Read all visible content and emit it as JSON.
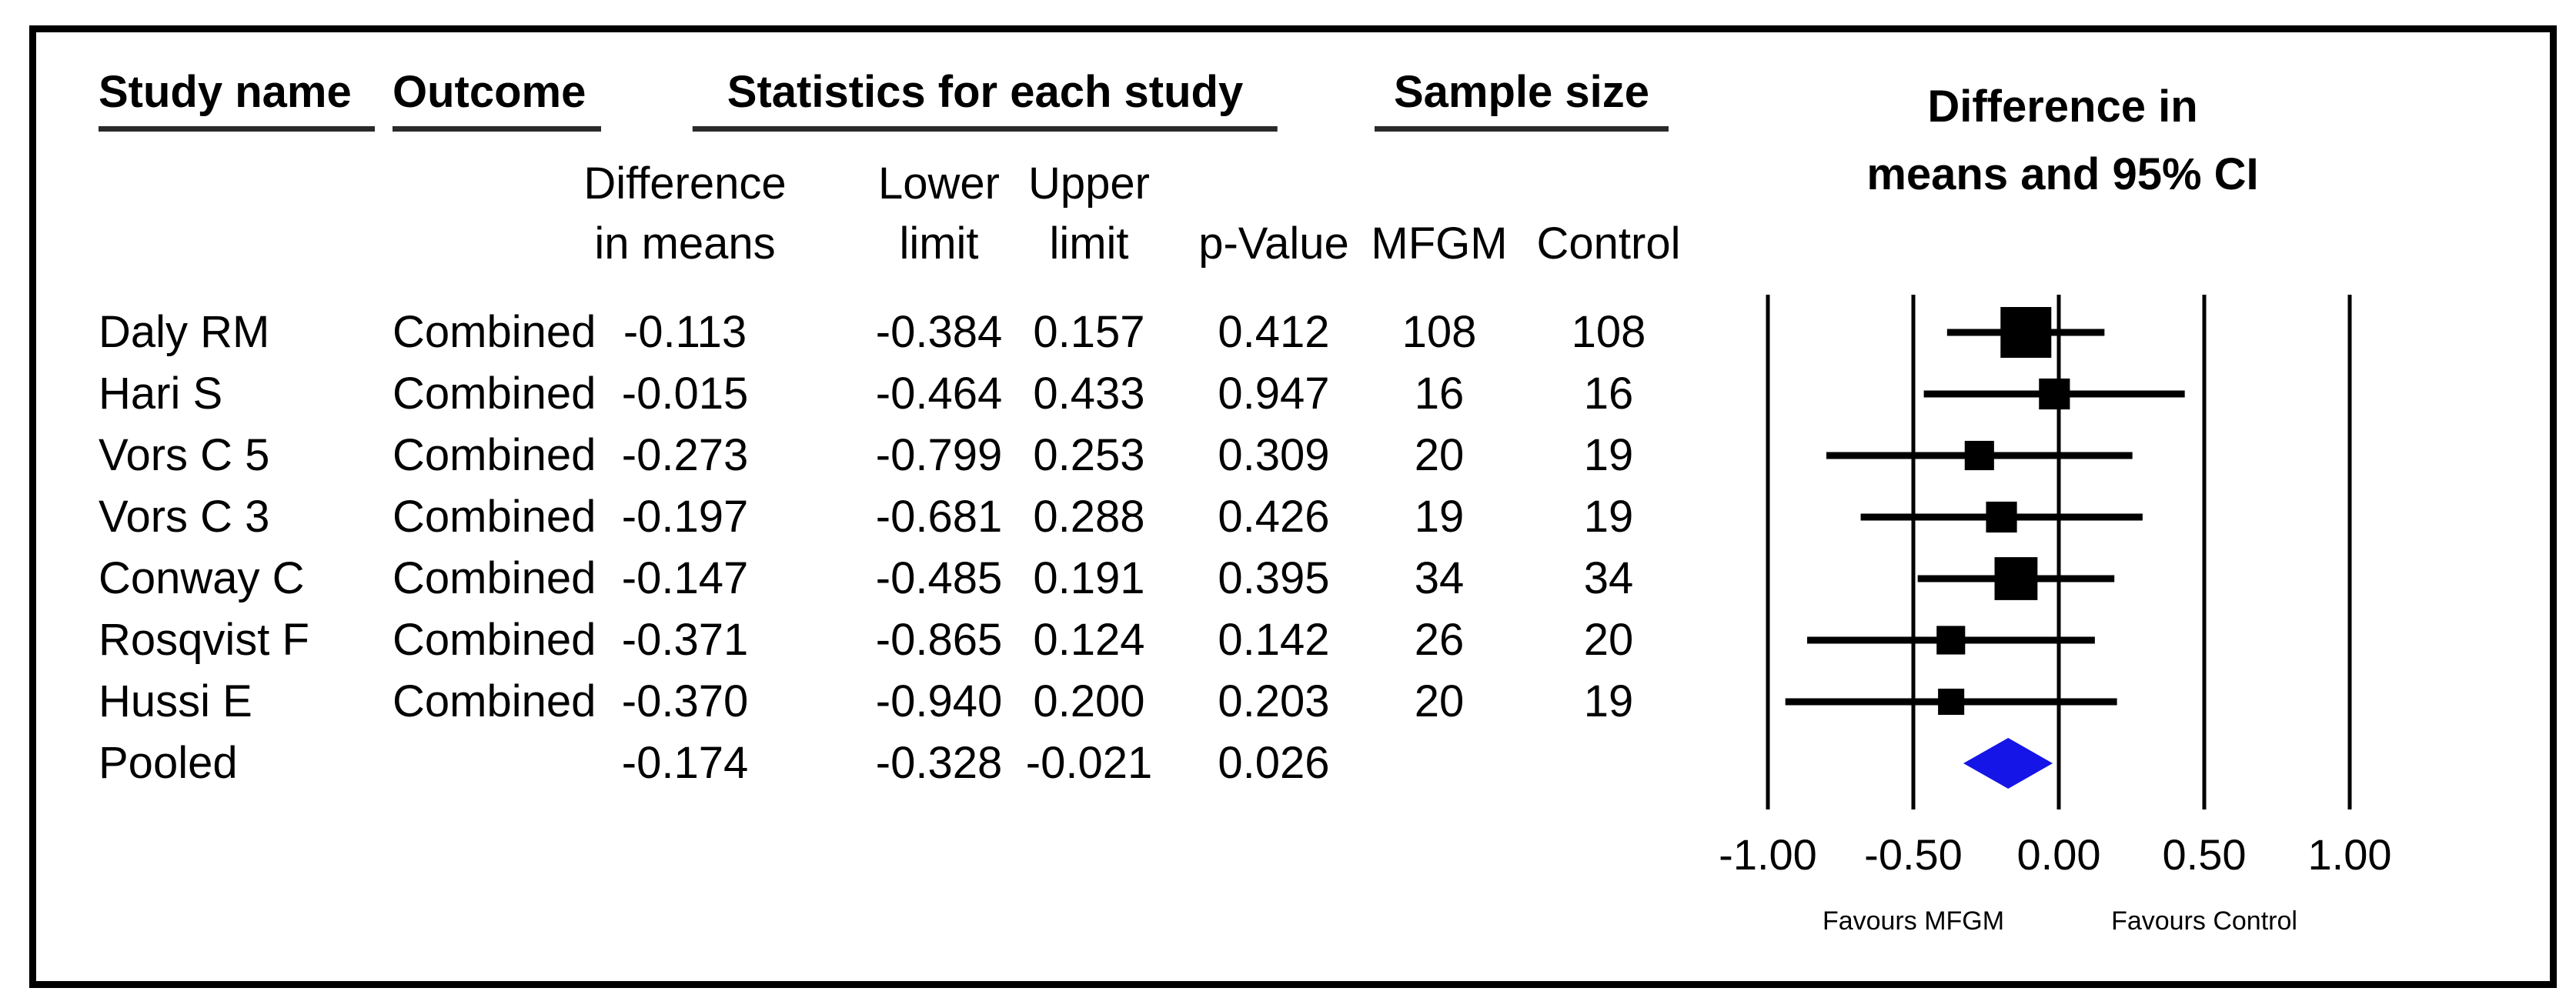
{
  "table": {
    "headers": {
      "study": "Study name",
      "outcome": "Outcome",
      "stats_group": "Statistics for each study",
      "sample_group": "Sample size"
    },
    "subheaders": {
      "diff1": "Difference",
      "diff2": "in means",
      "lower1": "Lower",
      "lower2": "limit",
      "upper1": "Upper",
      "upper2": "limit",
      "p": "p-Value",
      "mfgm": "MFGM",
      "control": "Control"
    }
  },
  "plot": {
    "title_line1": "Difference in",
    "title_line2": "means and 95% CI",
    "diamond_color": "#1515e8",
    "line_color": "#000000"
  },
  "chart_data": {
    "type": "forest",
    "title": "Difference in means and 95% CI",
    "effect_measure": "Difference in means",
    "ci_level": "95%",
    "xlim": [
      -1.0,
      1.0
    ],
    "grid": "vertical-gridlines-at-ticks",
    "x_ticks": [
      {
        "value": -1.0,
        "label": "-1.00"
      },
      {
        "value": -0.5,
        "label": "-0.50"
      },
      {
        "value": 0.0,
        "label": "0.00"
      },
      {
        "value": 0.5,
        "label": "0.50"
      },
      {
        "value": 1.0,
        "label": "1.00"
      }
    ],
    "annotations": {
      "left": "Favours MFGM",
      "right": "Favours Control"
    },
    "studies": [
      {
        "name": "Daly RM",
        "outcome": "Combined",
        "diff": -0.113,
        "lower": -0.384,
        "upper": 0.157,
        "p_value": 0.412,
        "n_mfgm": 108,
        "n_control": 108,
        "rel_weight": 1.0
      },
      {
        "name": "Hari S",
        "outcome": "Combined",
        "diff": -0.015,
        "lower": -0.464,
        "upper": 0.433,
        "p_value": 0.947,
        "n_mfgm": 16,
        "n_control": 16,
        "rel_weight": 0.24
      },
      {
        "name": "Vors C 5",
        "outcome": "Combined",
        "diff": -0.273,
        "lower": -0.799,
        "upper": 0.253,
        "p_value": 0.309,
        "n_mfgm": 20,
        "n_control": 19,
        "rel_weight": 0.18
      },
      {
        "name": "Vors C 3",
        "outcome": "Combined",
        "diff": -0.197,
        "lower": -0.681,
        "upper": 0.288,
        "p_value": 0.426,
        "n_mfgm": 19,
        "n_control": 19,
        "rel_weight": 0.24
      },
      {
        "name": "Conway C",
        "outcome": "Combined",
        "diff": -0.147,
        "lower": -0.485,
        "upper": 0.191,
        "p_value": 0.395,
        "n_mfgm": 34,
        "n_control": 34,
        "rel_weight": 0.7
      },
      {
        "name": "Rosqvist F",
        "outcome": "Combined",
        "diff": -0.371,
        "lower": -0.865,
        "upper": 0.124,
        "p_value": 0.142,
        "n_mfgm": 26,
        "n_control": 20,
        "rel_weight": 0.15
      },
      {
        "name": "Hussi E",
        "outcome": "Combined",
        "diff": -0.37,
        "lower": -0.94,
        "upper": 0.2,
        "p_value": 0.203,
        "n_mfgm": 20,
        "n_control": 19,
        "rel_weight": 0.06
      }
    ],
    "pooled": {
      "name": "Pooled",
      "diff": -0.174,
      "lower": -0.328,
      "upper": -0.021,
      "p_value": 0.026
    }
  }
}
